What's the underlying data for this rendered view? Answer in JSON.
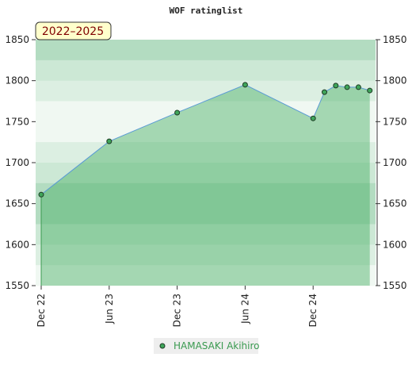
{
  "chart_data": {
    "type": "area",
    "title": "WOF ratinglist",
    "badge": "2022–2025",
    "x": [
      "Dec 22",
      "Jun 23",
      "Dec 23",
      "Jun 24",
      "Dec 24",
      "Jan 25",
      "Feb 25",
      "Mar 25",
      "Apr 25",
      "May 25"
    ],
    "xlim": [
      "Dec 22",
      "Jun 25"
    ],
    "xticks": [
      "Dec 22",
      "Jun 23",
      "Dec 23",
      "Jun 24",
      "Dec 24"
    ],
    "series": [
      {
        "name": "HAMASAKI Akihiro",
        "color": "#5b9bd5",
        "values": [
          1661,
          1726,
          1761,
          1795,
          1754,
          1786,
          1794,
          1792,
          1792,
          1788
        ]
      }
    ],
    "ylim": [
      1550,
      1850
    ],
    "yticks": [
      1550,
      1600,
      1650,
      1700,
      1750,
      1800,
      1850
    ],
    "y2lim": [
      1550,
      1850
    ],
    "y2ticks": [
      1550,
      1600,
      1650,
      1700,
      1750,
      1800,
      1850
    ],
    "grid": true
  }
}
